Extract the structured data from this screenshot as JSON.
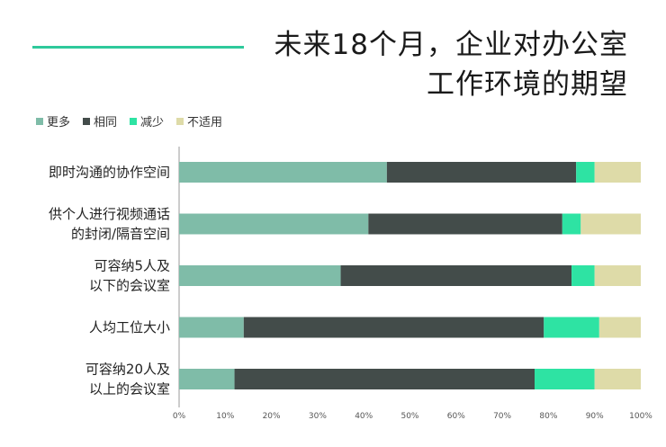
{
  "title_lines": [
    "未来18个月，企业对办公室",
    "工作环境的期望"
  ],
  "colors": {
    "accent_line": "#2ec99b",
    "series": [
      "#7fbca8",
      "#434c4a",
      "#2ee3a3",
      "#dedba8"
    ]
  },
  "chart_data": {
    "type": "bar",
    "orientation": "horizontal",
    "stacked": true,
    "categories": [
      "即时沟通的协作空间",
      "供个人进行视频通话\n的封闭/隔音空间",
      "可容纳5人及\n以下的会议室",
      "人均工位大小",
      "可容纳20人及\n以上的会议室"
    ],
    "series": [
      {
        "name": "更多",
        "values": [
          45,
          41,
          35,
          14,
          12
        ]
      },
      {
        "name": "相同",
        "values": [
          41,
          42,
          50,
          65,
          65
        ]
      },
      {
        "name": "减少",
        "values": [
          4,
          4,
          5,
          12,
          13
        ]
      },
      {
        "name": "不适用",
        "values": [
          10,
          13,
          10,
          9,
          10
        ]
      }
    ],
    "xlim": [
      0,
      100
    ],
    "x_ticks": [
      "0%",
      "10%",
      "20%",
      "30%",
      "40%",
      "50%",
      "60%",
      "70%",
      "80%",
      "90%",
      "100%"
    ],
    "legend_position": "top-left",
    "grid": false
  }
}
